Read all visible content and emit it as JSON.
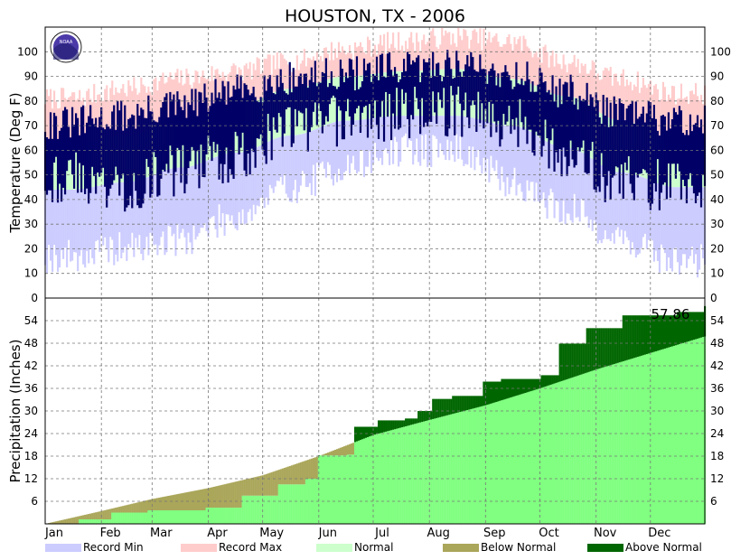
{
  "chart_data": {
    "type": "area",
    "title": "HOUSTON, TX - 2006",
    "logo_text": "NOAA",
    "months": [
      "Jan",
      "Feb",
      "Mar",
      "Apr",
      "May",
      "Jun",
      "Jul",
      "Aug",
      "Sep",
      "Oct",
      "Nov",
      "Dec"
    ],
    "temperature": {
      "ylabel": "Temperature (Deg F)",
      "ylim": [
        0,
        110
      ],
      "yticks": [
        0,
        10,
        20,
        30,
        40,
        50,
        60,
        70,
        80,
        90,
        100
      ],
      "record_max_monthly": [
        81,
        85,
        89,
        92,
        96,
        101,
        104,
        106,
        104,
        96,
        89,
        83
      ],
      "normal_high_monthly": [
        63,
        66,
        72,
        78,
        85,
        90,
        92,
        93,
        89,
        82,
        72,
        64
      ],
      "normal_low_monthly": [
        44,
        47,
        53,
        59,
        66,
        72,
        74,
        74,
        70,
        61,
        51,
        45
      ],
      "record_min_monthly": [
        17,
        20,
        24,
        33,
        45,
        53,
        60,
        60,
        47,
        36,
        24,
        15
      ],
      "observed_high_monthly": [
        71,
        74,
        78,
        84,
        89,
        91,
        93,
        95,
        91,
        84,
        75,
        72
      ],
      "observed_low_monthly": [
        49,
        45,
        52,
        58,
        69,
        72,
        75,
        76,
        72,
        58,
        47,
        46
      ]
    },
    "precipitation": {
      "ylabel": "Precipitation (Inches)",
      "ylim": [
        0,
        60
      ],
      "yticks": [
        6,
        12,
        18,
        24,
        30,
        36,
        42,
        48,
        54
      ],
      "total_label": "57.86",
      "normal_cumulative": [
        {
          "doy": 1,
          "value": 0.0
        },
        {
          "doy": 32,
          "value": 3.4
        },
        {
          "doy": 60,
          "value": 6.6
        },
        {
          "doy": 91,
          "value": 9.5
        },
        {
          "doy": 121,
          "value": 12.9
        },
        {
          "doy": 152,
          "value": 18.0
        },
        {
          "doy": 182,
          "value": 23.6
        },
        {
          "doy": 213,
          "value": 27.6
        },
        {
          "doy": 244,
          "value": 31.5
        },
        {
          "doy": 274,
          "value": 36.0
        },
        {
          "doy": 305,
          "value": 41.0
        },
        {
          "doy": 335,
          "value": 45.4
        },
        {
          "doy": 365,
          "value": 49.8
        }
      ],
      "observed_cumulative": [
        {
          "doy": 1,
          "value": 0.0
        },
        {
          "doy": 20,
          "value": 1.2
        },
        {
          "doy": 38,
          "value": 3.0
        },
        {
          "doy": 58,
          "value": 3.6
        },
        {
          "doy": 90,
          "value": 4.3
        },
        {
          "doy": 110,
          "value": 7.5
        },
        {
          "doy": 130,
          "value": 10.5
        },
        {
          "doy": 145,
          "value": 12.0
        },
        {
          "doy": 152,
          "value": 18.2
        },
        {
          "doy": 168,
          "value": 18.4
        },
        {
          "doy": 172,
          "value": 25.8
        },
        {
          "doy": 185,
          "value": 27.5
        },
        {
          "doy": 200,
          "value": 28.0
        },
        {
          "doy": 207,
          "value": 30.0
        },
        {
          "doy": 215,
          "value": 33.2
        },
        {
          "doy": 226,
          "value": 34.0
        },
        {
          "doy": 243,
          "value": 37.8
        },
        {
          "doy": 253,
          "value": 38.5
        },
        {
          "doy": 275,
          "value": 39.5
        },
        {
          "doy": 285,
          "value": 47.9
        },
        {
          "doy": 300,
          "value": 52.0
        },
        {
          "doy": 320,
          "value": 55.4
        },
        {
          "doy": 350,
          "value": 56.3
        },
        {
          "doy": 365,
          "value": 57.86
        }
      ]
    },
    "legend": [
      {
        "label": "Record Min",
        "color": "#ccccff"
      },
      {
        "label": "Record Max",
        "color": "#ffcccc"
      },
      {
        "label": "Normal",
        "color": "#ccffcc"
      },
      {
        "label": "Below Normal",
        "color": "#aaa65a"
      },
      {
        "label": "Above Normal",
        "color": "#006600"
      }
    ],
    "colors": {
      "observed_temp": "#000066",
      "normal_precip": "#80ff80"
    },
    "grid": true
  }
}
